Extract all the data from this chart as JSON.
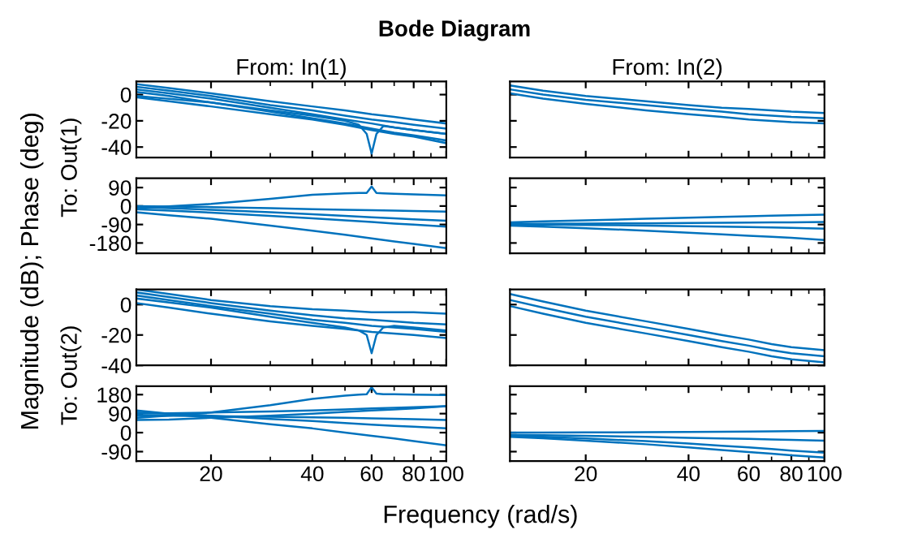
{
  "chart_data": [
    {
      "type": "line",
      "title": "Bode Diagram",
      "subtitle": "From: In(1)",
      "ylabel": "To: Out(1)",
      "annotations": [
        "Magnitude (dB); Phase (deg)"
      ],
      "log": "x",
      "xlim": [
        12,
        100
      ],
      "xticks": [
        20,
        40,
        60,
        80,
        100
      ],
      "ylim": [
        -48,
        10
      ],
      "yticks": [
        0,
        -20,
        -40
      ],
      "tick_labels": "y",
      "x": [
        12,
        15,
        20,
        30,
        40,
        50,
        60,
        70,
        80,
        100
      ],
      "series": [
        {
          "color": "#0072bd",
          "values": [
            8,
            5,
            1,
            -5,
            -9,
            -12,
            -15,
            -17,
            -19,
            -22
          ]
        },
        {
          "color": "#0072bd",
          "values": [
            6,
            3,
            -1,
            -8,
            -12,
            -16,
            -19,
            -21,
            -23,
            -26
          ]
        },
        {
          "color": "#0072bd",
          "values": [
            4,
            1,
            -3,
            -10,
            -15,
            -19,
            -22,
            -25,
            -27,
            -30
          ]
        },
        {
          "color": "#0072bd",
          "values": [
            2,
            -1,
            -6,
            -13,
            -18,
            -22,
            -26,
            -29,
            -31,
            -35
          ]
        },
        {
          "color": "#0072bd",
          "values": [
            -2,
            -5,
            -9,
            -15,
            -19,
            -23,
            -27,
            -30,
            -32,
            -37
          ]
        },
        {
          "color": "#0072bd",
          "x": [
            12,
            20,
            30,
            40,
            50,
            55,
            58,
            60,
            62,
            65,
            70,
            80,
            100
          ],
          "values": [
            -1,
            -6,
            -12,
            -16,
            -20,
            -23,
            -30,
            -45,
            -30,
            -24,
            -25,
            -27,
            -30
          ]
        }
      ]
    },
    {
      "type": "line",
      "subtitle": "From: In(2)",
      "log": "x",
      "xlim": [
        12,
        100
      ],
      "xticks": [
        20,
        40,
        60,
        80,
        100
      ],
      "ylim": [
        -48,
        10
      ],
      "yticks": [
        0,
        -20,
        -40
      ],
      "tick_labels": false,
      "x": [
        12,
        15,
        20,
        30,
        40,
        50,
        60,
        70,
        80,
        100
      ],
      "series": [
        {
          "color": "#0072bd",
          "values": [
            7,
            3,
            -1,
            -5,
            -8,
            -10,
            -11,
            -12,
            -13,
            -14
          ]
        },
        {
          "color": "#0072bd",
          "values": [
            4,
            0,
            -4,
            -8,
            -11,
            -13,
            -15,
            -16,
            -17,
            -18
          ]
        },
        {
          "color": "#0072bd",
          "values": [
            1,
            -3,
            -7,
            -12,
            -15,
            -17,
            -19,
            -20,
            -21,
            -22
          ]
        }
      ]
    },
    {
      "type": "line",
      "log": "x",
      "xlim": [
        12,
        100
      ],
      "xticks": [
        20,
        40,
        60,
        80,
        100
      ],
      "ylim": [
        -230,
        135
      ],
      "yticks": [
        90,
        0,
        -90,
        -180
      ],
      "tick_labels": "y",
      "x": [
        12,
        15,
        20,
        30,
        40,
        50,
        60,
        70,
        80,
        100
      ],
      "series": [
        {
          "color": "#0072bd",
          "values": [
            0,
            -2,
            -5,
            -10,
            -15,
            -18,
            -20,
            -22,
            -24,
            -27
          ]
        },
        {
          "color": "#0072bd",
          "values": [
            -5,
            -10,
            -18,
            -30,
            -40,
            -48,
            -55,
            -60,
            -65,
            -72
          ]
        },
        {
          "color": "#0072bd",
          "values": [
            -15,
            -22,
            -32,
            -48,
            -60,
            -70,
            -78,
            -85,
            -90,
            -100
          ]
        },
        {
          "color": "#0072bd",
          "values": [
            -30,
            -45,
            -62,
            -95,
            -120,
            -140,
            -158,
            -172,
            -184,
            -205
          ]
        },
        {
          "color": "#0072bd",
          "x": [
            12,
            20,
            30,
            40,
            50,
            55,
            58,
            60,
            62,
            65,
            70,
            80,
            100
          ],
          "values": [
            -10,
            10,
            35,
            55,
            62,
            64,
            64,
            95,
            64,
            62,
            60,
            57,
            52
          ]
        }
      ]
    },
    {
      "type": "line",
      "log": "x",
      "xlim": [
        12,
        100
      ],
      "xticks": [
        20,
        40,
        60,
        80,
        100
      ],
      "ylim": [
        -230,
        135
      ],
      "yticks": [
        90,
        0,
        -90,
        -180
      ],
      "tick_labels": false,
      "x": [
        12,
        15,
        20,
        30,
        40,
        50,
        60,
        70,
        80,
        100
      ],
      "series": [
        {
          "color": "#0072bd",
          "values": [
            -80,
            -75,
            -70,
            -62,
            -57,
            -53,
            -50,
            -47,
            -45,
            -42
          ]
        },
        {
          "color": "#0072bd",
          "values": [
            -88,
            -86,
            -85,
            -84,
            -83,
            -82,
            -81,
            -80,
            -80,
            -78
          ]
        },
        {
          "color": "#0072bd",
          "values": [
            -90,
            -90,
            -92,
            -95,
            -98,
            -100,
            -102,
            -104,
            -106,
            -110
          ]
        },
        {
          "color": "#0072bd",
          "values": [
            -95,
            -100,
            -108,
            -120,
            -130,
            -138,
            -145,
            -150,
            -155,
            -165
          ]
        }
      ]
    },
    {
      "type": "line",
      "ylabel": "To: Out(2)",
      "log": "x",
      "xlim": [
        12,
        100
      ],
      "xticks": [
        20,
        40,
        60,
        80,
        100
      ],
      "ylim": [
        -40,
        10
      ],
      "yticks": [
        0,
        -20,
        -40
      ],
      "tick_labels": "y",
      "x": [
        12,
        15,
        20,
        30,
        40,
        50,
        60,
        70,
        80,
        100
      ],
      "series": [
        {
          "color": "#0072bd",
          "values": [
            10,
            7,
            3,
            -1,
            -3,
            -4,
            -5,
            -5,
            -5,
            -6
          ]
        },
        {
          "color": "#0072bd",
          "values": [
            8,
            5,
            1,
            -4,
            -7,
            -9,
            -10,
            -11,
            -12,
            -13
          ]
        },
        {
          "color": "#0072bd",
          "values": [
            6,
            3,
            -1,
            -6,
            -10,
            -12,
            -14,
            -15,
            -16,
            -18
          ]
        },
        {
          "color": "#0072bd",
          "values": [
            1,
            -2,
            -6,
            -11,
            -14,
            -16,
            -18,
            -19,
            -20,
            -22
          ]
        },
        {
          "color": "#0072bd",
          "x": [
            12,
            20,
            30,
            40,
            50,
            55,
            58,
            60,
            62,
            65,
            70,
            80,
            100
          ],
          "values": [
            4,
            -2,
            -8,
            -12,
            -15,
            -17,
            -20,
            -32,
            -20,
            -15,
            -14,
            -15,
            -17
          ]
        }
      ]
    },
    {
      "type": "line",
      "log": "x",
      "xlim": [
        12,
        100
      ],
      "xticks": [
        20,
        40,
        60,
        80,
        100
      ],
      "ylim": [
        -40,
        10
      ],
      "yticks": [
        0,
        -20,
        -40
      ],
      "tick_labels": false,
      "x": [
        12,
        15,
        20,
        30,
        40,
        50,
        60,
        70,
        80,
        100
      ],
      "series": [
        {
          "color": "#0072bd",
          "values": [
            7,
            2,
            -4,
            -11,
            -16,
            -20,
            -23,
            -26,
            -28,
            -30
          ]
        },
        {
          "color": "#0072bd",
          "values": [
            3,
            -2,
            -8,
            -15,
            -20,
            -24,
            -27,
            -30,
            -32,
            -34
          ]
        },
        {
          "color": "#0072bd",
          "values": [
            -1,
            -6,
            -12,
            -19,
            -24,
            -28,
            -31,
            -34,
            -36,
            -38
          ]
        }
      ]
    },
    {
      "type": "line",
      "xlabel": "Frequency (rad/s)",
      "log": "x",
      "xlim": [
        12,
        100
      ],
      "xticks": [
        20,
        40,
        60,
        80,
        100
      ],
      "ylim": [
        -135,
        220
      ],
      "yticks": [
        180,
        90,
        0,
        -90
      ],
      "x": [
        12,
        15,
        20,
        30,
        40,
        50,
        60,
        70,
        80,
        100
      ],
      "series": [
        {
          "color": "#0072bd",
          "values": [
            90,
            92,
            95,
            100,
            105,
            110,
            115,
            118,
            120,
            125
          ]
        },
        {
          "color": "#0072bd",
          "values": [
            80,
            80,
            78,
            75,
            72,
            70,
            68,
            66,
            64,
            60
          ]
        },
        {
          "color": "#0072bd",
          "values": [
            95,
            90,
            80,
            65,
            55,
            45,
            38,
            32,
            28,
            20
          ]
        },
        {
          "color": "#0072bd",
          "values": [
            105,
            90,
            70,
            40,
            20,
            0,
            -15,
            -28,
            -40,
            -60
          ]
        },
        {
          "color": "#0072bd",
          "values": [
            60,
            62,
            70,
            80,
            90,
            98,
            105,
            110,
            115,
            125
          ]
        },
        {
          "color": "#0072bd",
          "x": [
            12,
            20,
            30,
            40,
            50,
            55,
            58,
            60,
            62,
            65,
            70,
            80,
            100
          ],
          "values": [
            70,
            95,
            130,
            160,
            175,
            180,
            182,
            215,
            185,
            182,
            182,
            180,
            178
          ]
        }
      ]
    },
    {
      "type": "line",
      "log": "x",
      "xlim": [
        12,
        100
      ],
      "xticks": [
        20,
        40,
        60,
        80,
        100
      ],
      "ylim": [
        -135,
        220
      ],
      "yticks": [
        180,
        90,
        0,
        -90
      ],
      "tick_labels": "x",
      "x": [
        12,
        15,
        20,
        30,
        40,
        50,
        60,
        70,
        80,
        100
      ],
      "series": [
        {
          "color": "#0072bd",
          "values": [
            0,
            0,
            1,
            2,
            3,
            4,
            5,
            6,
            7,
            8
          ]
        },
        {
          "color": "#0072bd",
          "values": [
            -10,
            -12,
            -15,
            -20,
            -25,
            -28,
            -30,
            -32,
            -34,
            -38
          ]
        },
        {
          "color": "#0072bd",
          "values": [
            -15,
            -20,
            -28,
            -40,
            -52,
            -62,
            -70,
            -78,
            -85,
            -95
          ]
        },
        {
          "color": "#0072bd",
          "values": [
            -20,
            -27,
            -38,
            -55,
            -70,
            -82,
            -92,
            -100,
            -107,
            -118
          ]
        }
      ]
    }
  ]
}
